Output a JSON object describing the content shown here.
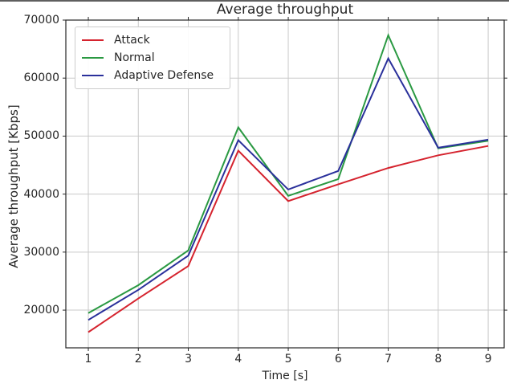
{
  "figure": {
    "title": "Average throughput"
  },
  "axes": {
    "xlabel": "Time [s]",
    "ylabel": "Average throughput [Kbps]"
  },
  "legend": {
    "items": [
      {
        "label": "Attack",
        "color": "#d5232e"
      },
      {
        "label": "Normal",
        "color": "#2a9942"
      },
      {
        "label": "Adaptive Defense",
        "color": "#2a309b"
      }
    ]
  },
  "chart_data": {
    "type": "line",
    "title": "Average throughput",
    "xlabel": "Time [s]",
    "ylabel": "Average throughput [Kbps]",
    "x": [
      1,
      2,
      3,
      4,
      5,
      6,
      7,
      8,
      9
    ],
    "series": [
      {
        "name": "Attack",
        "color": "#d5232e",
        "values": [
          16200,
          22000,
          27600,
          47500,
          38800,
          41700,
          44500,
          46700,
          48300
        ]
      },
      {
        "name": "Normal",
        "color": "#2a9942",
        "values": [
          19500,
          24300,
          30300,
          51500,
          39700,
          42600,
          67400,
          47900,
          49200
        ]
      },
      {
        "name": "Adaptive Defense",
        "color": "#2a309b",
        "values": [
          18300,
          23500,
          29400,
          49300,
          40800,
          44000,
          63400,
          48000,
          49400
        ]
      }
    ],
    "xlim": [
      0.55,
      9.32
    ],
    "ylim": [
      13500,
      70000
    ],
    "xticks": [
      1,
      2,
      3,
      4,
      5,
      6,
      7,
      8,
      9
    ],
    "yticks": [
      20000,
      30000,
      40000,
      50000,
      60000,
      70000
    ],
    "grid": true,
    "grid_color": "#c9c9c9",
    "frame_color": "#262626",
    "legend_position": "upper left"
  }
}
